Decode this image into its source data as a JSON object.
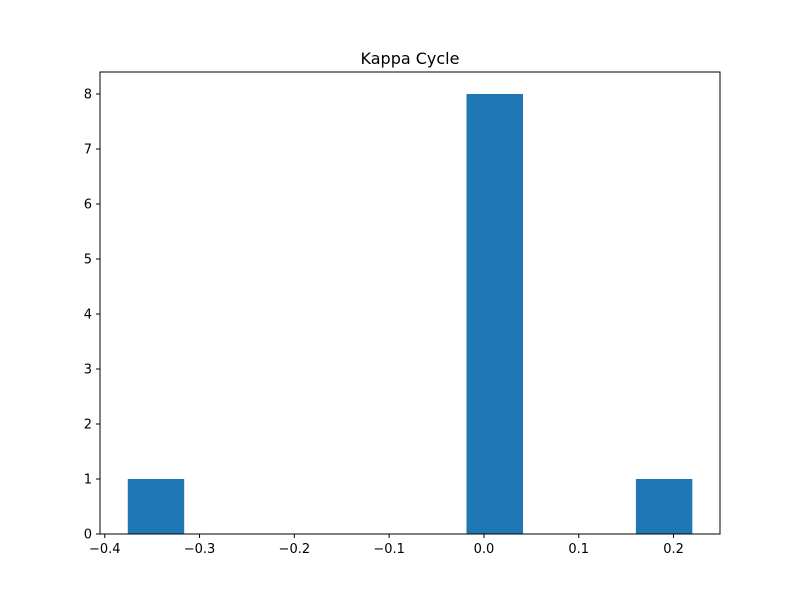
{
  "chart_data": {
    "type": "bar",
    "title": "Kappa Cycle",
    "xlabel": "",
    "ylabel": "",
    "bins": [
      {
        "x_start": -0.3757,
        "x_end": -0.3162,
        "value": 1
      },
      {
        "x_start": -0.0184,
        "x_end": 0.0412,
        "value": 8
      },
      {
        "x_start": 0.1603,
        "x_end": 0.2198,
        "value": 1
      }
    ],
    "xlim": [
      -0.405,
      0.249
    ],
    "ylim": [
      0,
      8.4
    ],
    "x_ticks": [
      "−0.4",
      "−0.3",
      "−0.2",
      "−0.1",
      "0.0",
      "0.1",
      "0.2"
    ],
    "x_tick_values": [
      -0.4,
      -0.3,
      -0.2,
      -0.1,
      0.0,
      0.1,
      0.2
    ],
    "y_ticks": [
      "0",
      "1",
      "2",
      "3",
      "4",
      "5",
      "6",
      "7",
      "8"
    ],
    "y_tick_values": [
      0,
      1,
      2,
      3,
      4,
      5,
      6,
      7,
      8
    ],
    "grid": false,
    "bar_color": "#1f77b4"
  }
}
